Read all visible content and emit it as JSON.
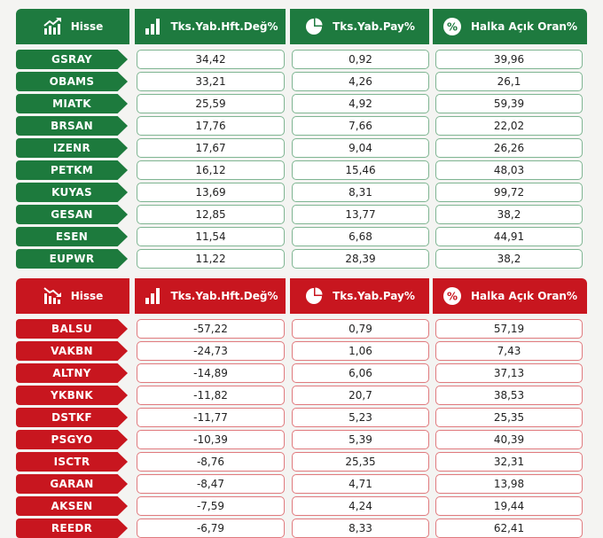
{
  "colors": {
    "green": "#1e7a3f",
    "red": "#c8161f"
  },
  "gainers": {
    "headers": {
      "ticker": "Hisse",
      "weekly_change": "Tks.Yab.Hft.Değ%",
      "share": "Tks.Yab.Pay%",
      "free_float": "Halka Açık Oran%"
    },
    "header_icons": [
      "rising-chart-icon",
      "bar-chart-icon",
      "pie-chart-icon",
      "percent-icon"
    ],
    "rows": [
      {
        "ticker": "GSRAY",
        "weekly_change": "34,42",
        "share": "0,92",
        "free_float": "39,96"
      },
      {
        "ticker": "OBAMS",
        "weekly_change": "33,21",
        "share": "4,26",
        "free_float": "26,1"
      },
      {
        "ticker": "MIATK",
        "weekly_change": "25,59",
        "share": "4,92",
        "free_float": "59,39"
      },
      {
        "ticker": "BRSAN",
        "weekly_change": "17,76",
        "share": "7,66",
        "free_float": "22,02"
      },
      {
        "ticker": "IZENR",
        "weekly_change": "17,67",
        "share": "9,04",
        "free_float": "26,26"
      },
      {
        "ticker": "PETKM",
        "weekly_change": "16,12",
        "share": "15,46",
        "free_float": "48,03"
      },
      {
        "ticker": "KUYAS",
        "weekly_change": "13,69",
        "share": "8,31",
        "free_float": "99,72"
      },
      {
        "ticker": "GESAN",
        "weekly_change": "12,85",
        "share": "13,77",
        "free_float": "38,2"
      },
      {
        "ticker": "ESEN",
        "weekly_change": "11,54",
        "share": "6,68",
        "free_float": "44,91"
      },
      {
        "ticker": "EUPWR",
        "weekly_change": "11,22",
        "share": "28,39",
        "free_float": "38,2"
      }
    ]
  },
  "losers": {
    "headers": {
      "ticker": "Hisse",
      "weekly_change": "Tks.Yab.Hft.Değ%",
      "share": "Tks.Yab.Pay%",
      "free_float": "Halka Açık Oran%"
    },
    "header_icons": [
      "falling-chart-icon",
      "bar-chart-icon",
      "pie-chart-icon",
      "percent-icon"
    ],
    "rows": [
      {
        "ticker": "BALSU",
        "weekly_change": "-57,22",
        "share": "0,79",
        "free_float": "57,19"
      },
      {
        "ticker": "VAKBN",
        "weekly_change": "-24,73",
        "share": "1,06",
        "free_float": "7,43"
      },
      {
        "ticker": "ALTNY",
        "weekly_change": "-14,89",
        "share": "6,06",
        "free_float": "37,13"
      },
      {
        "ticker": "YKBNK",
        "weekly_change": "-11,82",
        "share": "20,7",
        "free_float": "38,53"
      },
      {
        "ticker": "DSTKF",
        "weekly_change": "-11,77",
        "share": "5,23",
        "free_float": "25,35"
      },
      {
        "ticker": "PSGYO",
        "weekly_change": "-10,39",
        "share": "5,39",
        "free_float": "40,39"
      },
      {
        "ticker": "ISCTR",
        "weekly_change": "-8,76",
        "share": "25,35",
        "free_float": "32,31"
      },
      {
        "ticker": "GARAN",
        "weekly_change": "-8,47",
        "share": "4,71",
        "free_float": "13,98"
      },
      {
        "ticker": "AKSEN",
        "weekly_change": "-7,59",
        "share": "4,24",
        "free_float": "19,44"
      },
      {
        "ticker": "REEDR",
        "weekly_change": "-6,79",
        "share": "8,33",
        "free_float": "62,41"
      }
    ]
  }
}
